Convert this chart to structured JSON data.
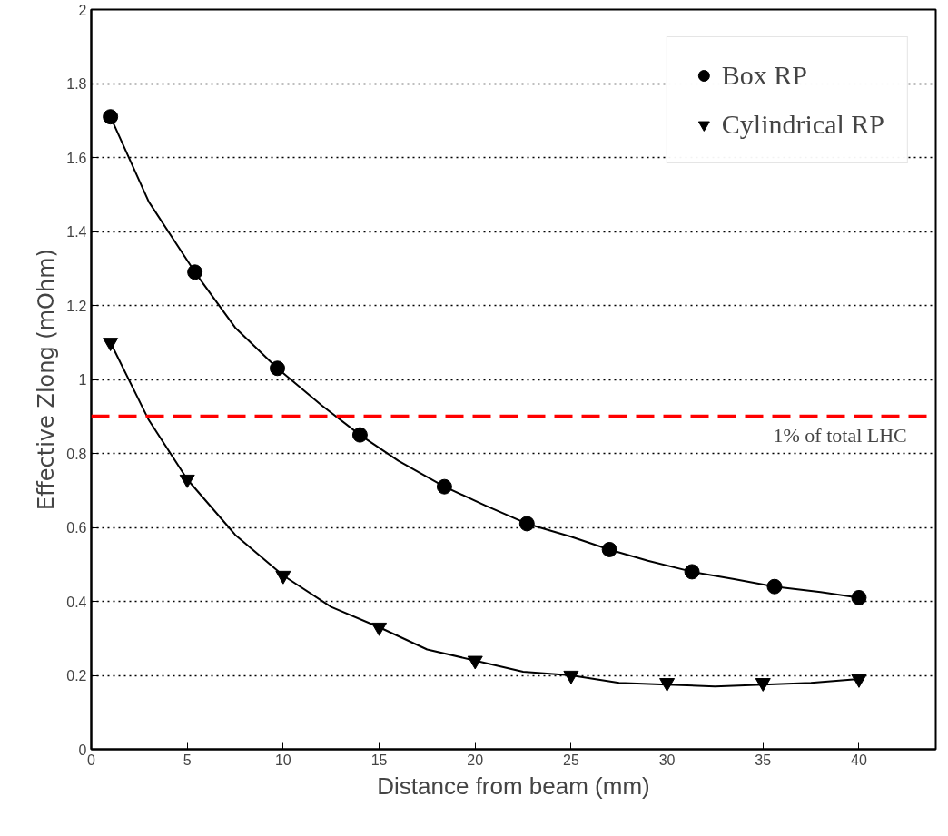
{
  "chart_data": {
    "type": "scatter",
    "xlabel": "Distance from beam (mm)",
    "ylabel": "Effective Zlong (mOhm)",
    "xlim": [
      0,
      44
    ],
    "ylim": [
      0,
      2
    ],
    "xticks": [
      0,
      5,
      10,
      15,
      20,
      25,
      30,
      35,
      40
    ],
    "yticks": [
      0,
      0.2,
      0.4,
      0.6,
      0.8,
      1,
      1.2,
      1.4,
      1.6,
      1.8,
      2
    ],
    "grid": "y",
    "legend": "top right",
    "series": [
      {
        "name": "Box RP",
        "marker": "circle",
        "color": "#000000",
        "x": [
          1,
          5.4,
          9.7,
          14,
          18.4,
          22.7,
          27,
          31.3,
          35.6,
          40
        ],
        "values": [
          1.71,
          1.29,
          1.03,
          0.85,
          0.71,
          0.61,
          0.54,
          0.48,
          0.44,
          0.41
        ]
      },
      {
        "name": "Cylindrical RP",
        "marker": "triangle",
        "color": "#000000",
        "x": [
          1,
          5,
          10,
          15,
          20,
          25,
          30,
          35,
          40
        ],
        "values": [
          1.1,
          0.73,
          0.47,
          0.33,
          0.24,
          0.2,
          0.18,
          0.18,
          0.19
        ]
      },
      {
        "type": "line",
        "marker": "none",
        "color": "#000000",
        "x": [
          1,
          3,
          5.4,
          7.5,
          9.7,
          12,
          14,
          16,
          18.4,
          20.5,
          22.7,
          25,
          27,
          29,
          31.3,
          33.5,
          35.6,
          38,
          40
        ],
        "values": [
          1.71,
          1.48,
          1.29,
          1.14,
          1.03,
          0.93,
          0.85,
          0.78,
          0.71,
          0.66,
          0.61,
          0.575,
          0.54,
          0.51,
          0.48,
          0.46,
          0.44,
          0.425,
          0.41
        ]
      },
      {
        "type": "line",
        "marker": "none",
        "color": "#000000",
        "x": [
          1,
          3,
          5,
          7.5,
          10,
          12.5,
          15,
          17.5,
          20,
          22.5,
          25,
          27.5,
          30,
          32.5,
          35,
          37.5,
          40
        ],
        "values": [
          1.1,
          0.89,
          0.73,
          0.58,
          0.47,
          0.385,
          0.33,
          0.27,
          0.24,
          0.21,
          0.2,
          0.18,
          0.175,
          0.17,
          0.175,
          0.18,
          0.19
        ]
      }
    ],
    "ref_lines": [
      {
        "axis": "y",
        "value": 0.9,
        "label": "1% of total LHC",
        "color": "#ff0000",
        "line_style": "dashed"
      }
    ]
  }
}
